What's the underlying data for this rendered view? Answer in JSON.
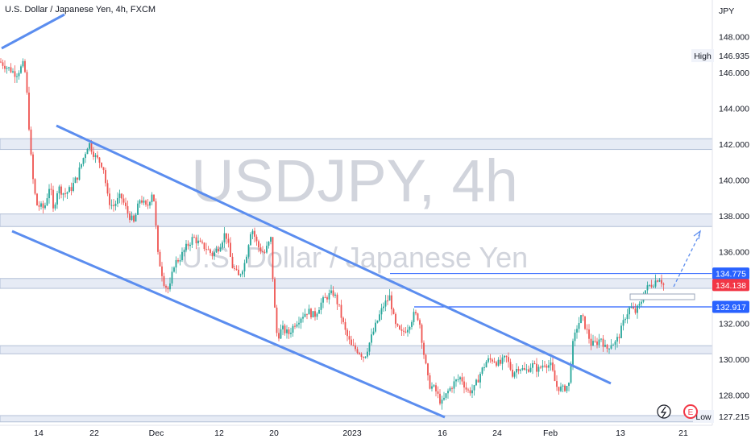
{
  "symbol": {
    "title": "U.S. Dollar / Japanese Yen, 4h, FXCM",
    "watermark_main": "USDJPY, 4h",
    "watermark_sub": "U.S. Dollar / Japanese Yen"
  },
  "colors": {
    "up": "#26a69a",
    "down": "#ef5350",
    "trend": "#5b8def",
    "zone_fill": "#e6ebf5",
    "zone_stroke": "#b2bfd6",
    "accent": "#2962ff",
    "red": "#f23645"
  },
  "axis": {
    "currency": "JPY",
    "ylim": [
      126.4,
      149.5
    ],
    "y_ticks": [
      "148.000",
      "146.000",
      "144.000",
      "142.000",
      "140.000",
      "138.000",
      "136.000",
      "134.000",
      "132.000",
      "130.000",
      "128.000"
    ],
    "x_ticks": [
      "14",
      "22",
      "Dec",
      "12",
      "20",
      "2023",
      "16",
      "24",
      "Feb",
      "13",
      "21"
    ]
  },
  "chart_data": {
    "type": "candlestick",
    "timeframe": "4h",
    "path": [
      [
        0,
        146.6
      ],
      [
        20,
        145.9
      ],
      [
        30,
        146.5
      ],
      [
        34,
        144.5
      ],
      [
        38,
        141.5
      ],
      [
        42,
        139.5
      ],
      [
        46,
        138.6
      ],
      [
        55,
        138.4
      ],
      [
        62,
        139.8
      ],
      [
        66,
        138.3
      ],
      [
        72,
        139.6
      ],
      [
        80,
        139.2
      ],
      [
        88,
        139.5
      ],
      [
        96,
        140.2
      ],
      [
        104,
        141.3
      ],
      [
        110,
        142.1
      ],
      [
        118,
        141.3
      ],
      [
        128,
        140.8
      ],
      [
        134,
        138.9
      ],
      [
        140,
        138.5
      ],
      [
        150,
        139.1
      ],
      [
        158,
        138.2
      ],
      [
        166,
        137.6
      ],
      [
        174,
        139.0
      ],
      [
        182,
        138.4
      ],
      [
        190,
        139.5
      ],
      [
        196,
        135.8
      ],
      [
        204,
        134.2
      ],
      [
        210,
        133.8
      ],
      [
        216,
        135.3
      ],
      [
        224,
        135.7
      ],
      [
        232,
        136.3
      ],
      [
        240,
        136.8
      ],
      [
        248,
        136.4
      ],
      [
        256,
        136.2
      ],
      [
        264,
        135.8
      ],
      [
        272,
        136.3
      ],
      [
        280,
        137.1
      ],
      [
        288,
        135.2
      ],
      [
        296,
        134.6
      ],
      [
        304,
        135.4
      ],
      [
        312,
        137.4
      ],
      [
        320,
        136.3
      ],
      [
        328,
        135.9
      ],
      [
        336,
        136.7
      ],
      [
        340,
        133.3
      ],
      [
        344,
        131.2
      ],
      [
        350,
        131.7
      ],
      [
        358,
        131.4
      ],
      [
        366,
        132.0
      ],
      [
        374,
        132.4
      ],
      [
        382,
        132.7
      ],
      [
        390,
        132.4
      ],
      [
        398,
        133.1
      ],
      [
        406,
        133.5
      ],
      [
        414,
        133.7
      ],
      [
        420,
        133.0
      ],
      [
        428,
        131.6
      ],
      [
        436,
        130.7
      ],
      [
        444,
        130.5
      ],
      [
        452,
        130.1
      ],
      [
        460,
        131.1
      ],
      [
        468,
        132.1
      ],
      [
        476,
        133.0
      ],
      [
        484,
        133.5
      ],
      [
        490,
        131.9
      ],
      [
        498,
        131.4
      ],
      [
        506,
        131.8
      ],
      [
        514,
        132.5
      ],
      [
        520,
        132.3
      ],
      [
        526,
        130.3
      ],
      [
        532,
        128.6
      ],
      [
        540,
        128.3
      ],
      [
        548,
        127.5
      ],
      [
        556,
        128.2
      ],
      [
        564,
        128.7
      ],
      [
        572,
        129.0
      ],
      [
        580,
        128.2
      ],
      [
        588,
        128.3
      ],
      [
        596,
        129.2
      ],
      [
        604,
        129.9
      ],
      [
        612,
        130.0
      ],
      [
        620,
        129.7
      ],
      [
        628,
        130.1
      ],
      [
        636,
        129.2
      ],
      [
        644,
        129.6
      ],
      [
        652,
        129.3
      ],
      [
        660,
        129.7
      ],
      [
        668,
        129.4
      ],
      [
        676,
        129.8
      ],
      [
        684,
        129.6
      ],
      [
        690,
        128.5
      ],
      [
        698,
        128.3
      ],
      [
        706,
        128.6
      ],
      [
        710,
        130.6
      ],
      [
        716,
        131.8
      ],
      [
        722,
        132.4
      ],
      [
        728,
        131.6
      ],
      [
        734,
        130.8
      ],
      [
        740,
        130.9
      ],
      [
        746,
        131.2
      ],
      [
        752,
        130.5
      ],
      [
        758,
        130.9
      ],
      [
        764,
        130.9
      ],
      [
        770,
        131.5
      ],
      [
        776,
        132.4
      ],
      [
        782,
        132.9
      ],
      [
        788,
        132.6
      ],
      [
        794,
        133.0
      ],
      [
        800,
        133.8
      ],
      [
        806,
        134.1
      ],
      [
        812,
        134.3
      ],
      [
        818,
        134.6
      ],
      [
        824,
        134.1
      ]
    ],
    "x_range": [
      "2022-11-09",
      "2023-02-24"
    ],
    "annotations": {
      "price_labels": [
        "134.775",
        "134.138",
        "132.917",
        "127.215",
        "146.935"
      ],
      "high_label": "High",
      "high_value": "146.935",
      "low_label": "Low",
      "low_value": "127.215"
    },
    "support_resistance_zones": [
      [
        141.7,
        142.3
      ],
      [
        137.4,
        138.1
      ],
      [
        133.95,
        134.5
      ],
      [
        130.3,
        130.75
      ],
      [
        126.5,
        126.85
      ]
    ],
    "horizontal_lines": [
      134.775,
      132.917
    ]
  }
}
